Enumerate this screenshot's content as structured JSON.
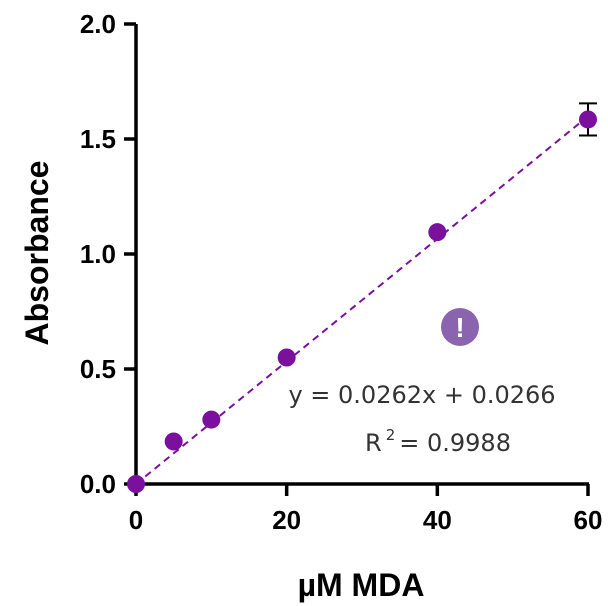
{
  "chart_data": {
    "type": "scatter",
    "xlabel": "µM MDA",
    "ylabel": "Absorbance",
    "xlim": [
      0,
      60
    ],
    "ylim": [
      0,
      2.0
    ],
    "xticks": [
      0,
      20,
      40,
      60
    ],
    "xtick_labels": [
      "0",
      "20",
      "40",
      "60"
    ],
    "yticks": [
      0,
      0.5,
      1.0,
      1.5,
      2.0
    ],
    "ytick_labels": [
      "0.0",
      "0.5",
      "1.0",
      "1.5",
      "2.0"
    ],
    "grid": false,
    "series": [
      {
        "x": [
          0,
          5,
          10,
          20,
          40,
          60
        ],
        "y": [
          0.0,
          0.185,
          0.28,
          0.55,
          1.095,
          1.585
        ],
        "error": [
          0,
          0,
          0,
          0,
          0,
          0.07
        ],
        "color": "#7B0F9E"
      }
    ],
    "fit": {
      "type": "linear",
      "slope": 0.0262,
      "intercept": 0.0266,
      "color": "#7B0F9E",
      "style": "dashed"
    },
    "annotations": {
      "equation": "y = 0.0262x + 0.0266",
      "r2_prefix": "R",
      "r2_sup": "2",
      "r2_value": " = 0.9988"
    },
    "warning_badge": {
      "icon": "exclamation-icon",
      "glyph": "!",
      "color": "#8A64AE"
    }
  }
}
